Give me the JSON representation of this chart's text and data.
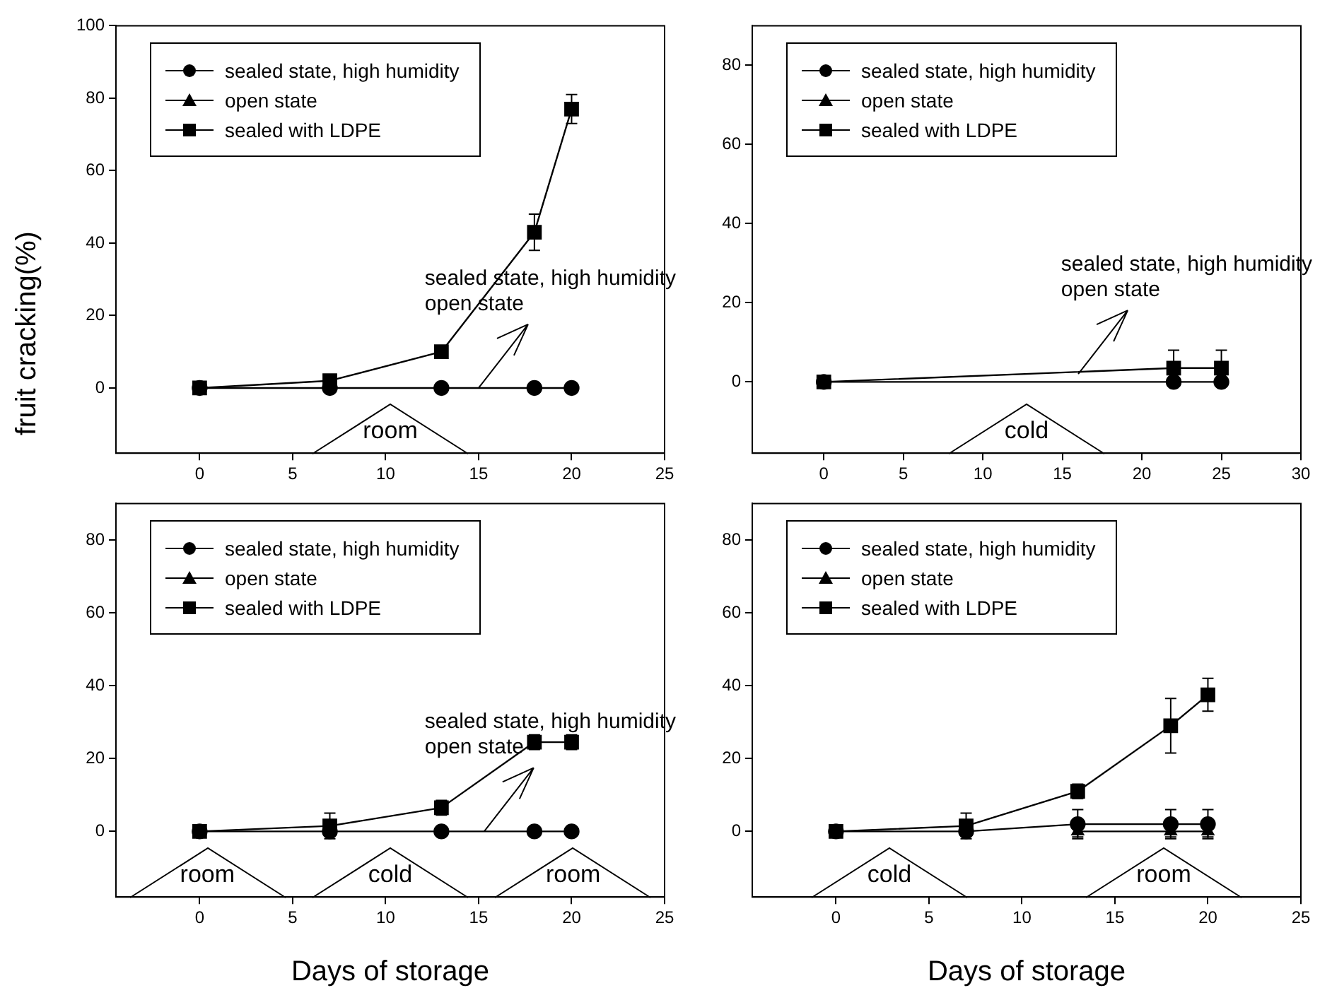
{
  "chart_data": [
    {
      "type": "line",
      "ylabel": "fruit cracking(%)",
      "x": [
        0,
        7,
        13,
        18,
        20
      ],
      "xlim": [
        -4.5,
        25
      ],
      "xticks": [
        0,
        5,
        10,
        15,
        20,
        25
      ],
      "ylim": [
        -18,
        100
      ],
      "yticks": [
        0,
        20,
        40,
        60,
        80,
        100
      ],
      "grid": false,
      "legend": "top left",
      "line_style": "solid",
      "series": [
        {
          "name": "sealed state, high humidity",
          "color": "#000000",
          "marker": "circle",
          "values": [
            0,
            0,
            0,
            0,
            0
          ]
        },
        {
          "name": "open state",
          "color": "#000000",
          "marker": "triangle",
          "values": [
            null,
            null,
            null,
            null,
            null
          ]
        },
        {
          "name": "sealed with LDPE",
          "color": "#000000",
          "marker": "square",
          "values": [
            0,
            2,
            10,
            43,
            77
          ],
          "errors": [
            null,
            null,
            null,
            5,
            4
          ]
        }
      ],
      "annotations": [
        {
          "text": "sealed state, high humidity\nopen state",
          "x": 15,
          "y": 0
        },
        "room"
      ]
    },
    {
      "type": "line",
      "x": [
        0,
        22,
        25
      ],
      "xlim": [
        -4.5,
        30
      ],
      "xticks": [
        0,
        5,
        10,
        15,
        20,
        25,
        30
      ],
      "ylim": [
        -18,
        90
      ],
      "yticks": [
        0,
        20,
        40,
        60,
        80
      ],
      "grid": false,
      "legend": "top left",
      "line_style": "solid",
      "series": [
        {
          "name": "sealed state, high humidity",
          "color": "#000000",
          "marker": "circle",
          "values": [
            0,
            0,
            0
          ]
        },
        {
          "name": "open state",
          "color": "#000000",
          "marker": "triangle",
          "values": [
            null,
            null,
            null
          ]
        },
        {
          "name": "sealed with LDPE",
          "color": "#000000",
          "marker": "square",
          "values": [
            0,
            3.5,
            3.5
          ],
          "errors": [
            null,
            4.5,
            4.5
          ]
        }
      ],
      "annotations": [
        {
          "text": "sealed state, high humidity\nopen state",
          "x": 16,
          "y": 2
        },
        "cold"
      ]
    },
    {
      "type": "line",
      "xlabel": "Days of storage",
      "x": [
        0,
        7,
        13,
        18,
        20
      ],
      "xlim": [
        -4.5,
        25
      ],
      "xticks": [
        0,
        5,
        10,
        15,
        20,
        25
      ],
      "ylim": [
        -18,
        90
      ],
      "yticks": [
        0,
        20,
        40,
        60,
        80
      ],
      "grid": false,
      "legend": "top left",
      "line_style": "solid",
      "series": [
        {
          "name": "sealed state, high humidity",
          "color": "#000000",
          "marker": "circle",
          "values": [
            0,
            0,
            0,
            0,
            0
          ]
        },
        {
          "name": "open state",
          "color": "#000000",
          "marker": "triangle",
          "values": [
            null,
            null,
            null,
            null,
            null
          ]
        },
        {
          "name": "sealed with LDPE",
          "color": "#000000",
          "marker": "square",
          "values": [
            0,
            1.5,
            6.5,
            24.5,
            24.5
          ],
          "errors": [
            null,
            3.5,
            2,
            2,
            2
          ]
        }
      ],
      "annotations": [
        {
          "text": "sealed state, high humidity\nopen state",
          "x": 15.3,
          "y": 0
        },
        "room",
        "cold",
        "room"
      ]
    },
    {
      "type": "line",
      "xlabel": "Days of storage",
      "x": [
        0,
        7,
        13,
        18,
        20
      ],
      "xlim": [
        -4.5,
        25
      ],
      "xticks": [
        0,
        5,
        10,
        15,
        20,
        25
      ],
      "ylim": [
        -18,
        90
      ],
      "yticks": [
        0,
        20,
        40,
        60,
        80
      ],
      "grid": false,
      "legend": "top left",
      "line_style": "solid",
      "series": [
        {
          "name": "sealed state, high humidity",
          "color": "#000000",
          "marker": "circle",
          "values": [
            0,
            0,
            2,
            2,
            2
          ],
          "errors": [
            null,
            null,
            4,
            4,
            4
          ]
        },
        {
          "name": "open state",
          "color": "#000000",
          "marker": "triangle",
          "values": [
            null,
            null,
            0,
            0,
            0
          ],
          "errors": [
            null,
            null,
            1.5,
            1.5,
            1.5
          ]
        },
        {
          "name": "sealed with LDPE",
          "color": "#000000",
          "marker": "square",
          "values": [
            0,
            1.5,
            11,
            29,
            37.5
          ],
          "errors": [
            null,
            3.5,
            2,
            7.5,
            4.5
          ]
        }
      ],
      "annotations": [
        "cold",
        "room"
      ]
    }
  ]
}
